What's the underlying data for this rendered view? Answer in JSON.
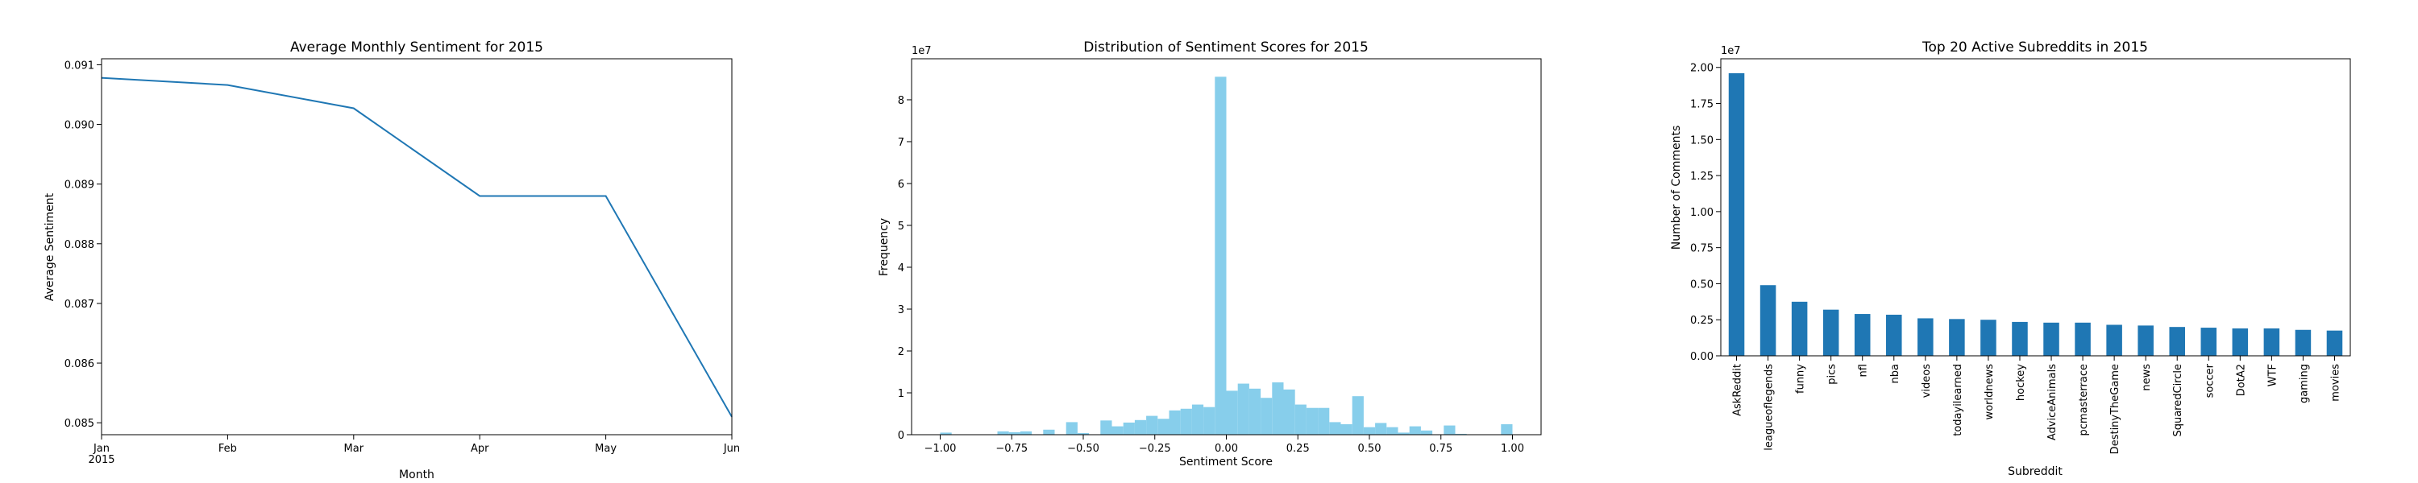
{
  "figure": {
    "background": "#ffffff",
    "panel_count": 3
  },
  "chart_data": [
    {
      "type": "line",
      "title": "Average Monthly Sentiment for 2015",
      "xlabel": "Month",
      "ylabel": "Average Sentiment",
      "x": [
        "Jan",
        "Feb",
        "Mar",
        "Apr",
        "May",
        "Jun"
      ],
      "x_sublabel": "2015",
      "series": [
        {
          "values": [
            0.09078,
            0.09066,
            0.09027,
            0.0888,
            0.0888,
            0.0851
          ],
          "color": "#1f77b4"
        }
      ],
      "ylim": [
        0.0848,
        0.0911
      ],
      "yticks": [
        0.085,
        0.086,
        0.087,
        0.088,
        0.089,
        0.09,
        0.091
      ],
      "ytick_labels": [
        "0.085",
        "0.086",
        "0.087",
        "0.088",
        "0.089",
        "0.090",
        "0.091"
      ],
      "grid": false,
      "legend": "none"
    },
    {
      "type": "bar",
      "subtype": "histogram",
      "title": "Distribution of Sentiment Scores for 2015",
      "xlabel": "Sentiment Score",
      "ylabel": "Frequency",
      "y_multiplier_label": "1e7",
      "bin_start": -1.0,
      "bin_width": 0.04,
      "values": [
        0.05,
        0.0,
        0.0,
        0.0,
        0.0,
        0.08,
        0.06,
        0.08,
        0.0,
        0.12,
        0.0,
        0.3,
        0.04,
        0.0,
        0.34,
        0.2,
        0.29,
        0.35,
        0.45,
        0.38,
        0.58,
        0.62,
        0.72,
        0.66,
        8.55,
        1.05,
        1.22,
        1.1,
        0.88,
        1.25,
        1.08,
        0.72,
        0.64,
        0.64,
        0.3,
        0.25,
        0.92,
        0.18,
        0.28,
        0.18,
        0.05,
        0.2,
        0.1,
        0.0,
        0.22,
        0.02,
        0.0,
        0.0,
        0.0,
        0.25
      ],
      "color": "#87ceeb",
      "xlim": [
        -1.1,
        1.1
      ],
      "xticks": [
        -1.0,
        -0.75,
        -0.5,
        -0.25,
        0.0,
        0.25,
        0.5,
        0.75,
        1.0
      ],
      "xtick_labels": [
        "−1.00",
        "−0.75",
        "−0.50",
        "−0.25",
        "0.00",
        "0.25",
        "0.50",
        "0.75",
        "1.00"
      ],
      "ylim": [
        0,
        8.98
      ],
      "yticks": [
        0,
        1,
        2,
        3,
        4,
        5,
        6,
        7,
        8
      ],
      "ytick_labels": [
        "0",
        "1",
        "2",
        "3",
        "4",
        "5",
        "6",
        "7",
        "8"
      ],
      "grid": false,
      "legend": "none"
    },
    {
      "type": "bar",
      "title": "Top 20 Active Subreddits in 2015",
      "xlabel": "Subreddit",
      "ylabel": "Number of Comments",
      "y_multiplier_label": "1e7",
      "categories": [
        "AskReddit",
        "leagueoflegends",
        "funny",
        "pics",
        "nfl",
        "nba",
        "videos",
        "todayilearned",
        "worldnews",
        "hockey",
        "AdviceAnimals",
        "pcmasterrace",
        "DestinyTheGame",
        "news",
        "SquaredCircle",
        "soccer",
        "DotA2",
        "WTF",
        "gaming",
        "movies"
      ],
      "values": [
        1.96,
        0.49,
        0.375,
        0.32,
        0.29,
        0.285,
        0.26,
        0.255,
        0.25,
        0.235,
        0.23,
        0.23,
        0.215,
        0.21,
        0.2,
        0.195,
        0.19,
        0.19,
        0.18,
        0.175
      ],
      "color": "#1f77b4",
      "ylim": [
        0,
        2.06
      ],
      "yticks": [
        0.0,
        0.25,
        0.5,
        0.75,
        1.0,
        1.25,
        1.5,
        1.75,
        2.0
      ],
      "ytick_labels": [
        "0.00",
        "0.25",
        "0.50",
        "0.75",
        "1.00",
        "1.25",
        "1.50",
        "1.75",
        "2.00"
      ],
      "grid": false,
      "legend": "none"
    }
  ]
}
